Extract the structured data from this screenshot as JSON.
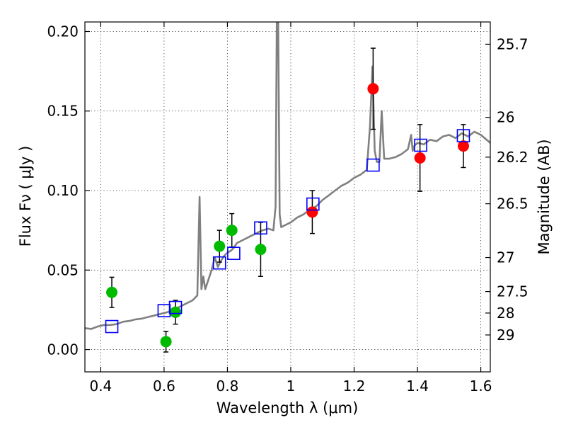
{
  "chart_data": {
    "type": "scatter",
    "xlabel": "Wavelength  λ (μm)",
    "ylabel": "Flux  Fν  ( μJy )",
    "ylabel_right": "Magnitude (AB)",
    "xlim": [
      0.35,
      1.63
    ],
    "ylim": [
      -0.014,
      0.206
    ],
    "xticks": [
      0.4,
      0.6,
      0.8,
      1.0,
      1.2,
      1.4,
      1.6
    ],
    "xtick_labels": [
      "0.4",
      "0.6",
      "0.8",
      "1",
      "1.2",
      "1.4",
      "1.6"
    ],
    "yticks": [
      0.0,
      0.05,
      0.1,
      0.15,
      0.2
    ],
    "ytick_labels": [
      "0.00",
      "0.05",
      "0.10",
      "0.15",
      "0.20"
    ],
    "right_ticks": [
      {
        "label": "25.7",
        "flux": 0.192
      },
      {
        "label": "26",
        "flux": 0.146
      },
      {
        "label": "26.2",
        "flux": 0.121
      },
      {
        "label": "26.5",
        "flux": 0.0917
      },
      {
        "label": "27",
        "flux": 0.0579
      },
      {
        "label": "27.5",
        "flux": 0.0365
      },
      {
        "label": "28",
        "flux": 0.023
      },
      {
        "label": "29",
        "flux": 0.0092
      }
    ],
    "grid": true,
    "colors": {
      "green": "#00bb00",
      "red": "#ff0000",
      "blue_box": "#0000ff",
      "spectrum": "#808080",
      "errorbar": "#000000"
    },
    "series": [
      {
        "type": "scatter",
        "marker": "circle",
        "color": "#00bb00",
        "points": [
          {
            "x": 0.435,
            "y": 0.036,
            "err": 0.0095
          },
          {
            "x": 0.606,
            "y": 0.005,
            "err": 0.0065
          },
          {
            "x": 0.636,
            "y": 0.0235,
            "err": 0.0075
          },
          {
            "x": 0.775,
            "y": 0.065,
            "err": 0.01
          },
          {
            "x": 0.814,
            "y": 0.075,
            "err": 0.0105
          },
          {
            "x": 0.905,
            "y": 0.063,
            "err": 0.017
          }
        ]
      },
      {
        "type": "scatter",
        "marker": "circle",
        "color": "#ff0000",
        "points": [
          {
            "x": 1.068,
            "y": 0.0865,
            "err": 0.0135
          },
          {
            "x": 1.26,
            "y": 0.164,
            "err": 0.0255
          },
          {
            "x": 1.408,
            "y": 0.1205,
            "err": 0.021
          },
          {
            "x": 1.545,
            "y": 0.128,
            "err": 0.0135
          }
        ]
      },
      {
        "type": "scatter",
        "marker": "open-square",
        "color": "#0000ff",
        "points": [
          {
            "x": 0.435,
            "y": 0.0145
          },
          {
            "x": 0.6,
            "y": 0.0245
          },
          {
            "x": 0.636,
            "y": 0.0265
          },
          {
            "x": 0.775,
            "y": 0.0545
          },
          {
            "x": 0.82,
            "y": 0.0605
          },
          {
            "x": 0.905,
            "y": 0.0765
          },
          {
            "x": 1.07,
            "y": 0.0915
          },
          {
            "x": 1.26,
            "y": 0.116
          },
          {
            "x": 1.41,
            "y": 0.1285
          },
          {
            "x": 1.545,
            "y": 0.1345
          }
        ]
      },
      {
        "type": "line",
        "color": "#808080",
        "x": [
          0.35,
          0.37,
          0.39,
          0.41,
          0.43,
          0.45,
          0.47,
          0.49,
          0.51,
          0.53,
          0.55,
          0.57,
          0.59,
          0.61,
          0.63,
          0.65,
          0.67,
          0.69,
          0.705,
          0.712,
          0.718,
          0.724,
          0.73,
          0.74,
          0.75,
          0.76,
          0.77,
          0.78,
          0.79,
          0.8,
          0.81,
          0.82,
          0.83,
          0.85,
          0.87,
          0.89,
          0.91,
          0.93,
          0.945,
          0.952,
          0.956,
          0.96,
          0.965,
          0.97,
          0.98,
          1.0,
          1.02,
          1.04,
          1.06,
          1.08,
          1.1,
          1.12,
          1.14,
          1.16,
          1.18,
          1.2,
          1.22,
          1.24,
          1.25,
          1.258,
          1.265,
          1.272,
          1.28,
          1.287,
          1.295,
          1.31,
          1.33,
          1.35,
          1.37,
          1.38,
          1.385,
          1.39,
          1.4,
          1.42,
          1.44,
          1.46,
          1.48,
          1.5,
          1.52,
          1.54,
          1.56,
          1.58,
          1.6,
          1.63
        ],
        "y": [
          0.0135,
          0.013,
          0.0145,
          0.0155,
          0.0155,
          0.016,
          0.0175,
          0.018,
          0.019,
          0.0195,
          0.0205,
          0.0215,
          0.0225,
          0.0235,
          0.025,
          0.027,
          0.029,
          0.031,
          0.034,
          0.096,
          0.038,
          0.046,
          0.038,
          0.044,
          0.05,
          0.058,
          0.052,
          0.056,
          0.059,
          0.061,
          0.062,
          0.064,
          0.067,
          0.069,
          0.071,
          0.073,
          0.075,
          0.076,
          0.075,
          0.09,
          0.21,
          0.21,
          0.085,
          0.077,
          0.078,
          0.08,
          0.083,
          0.085,
          0.088,
          0.09,
          0.094,
          0.097,
          0.1,
          0.103,
          0.105,
          0.108,
          0.11,
          0.113,
          0.14,
          0.178,
          0.125,
          0.118,
          0.118,
          0.15,
          0.12,
          0.12,
          0.121,
          0.123,
          0.126,
          0.135,
          0.125,
          0.128,
          0.13,
          0.129,
          0.132,
          0.131,
          0.134,
          0.135,
          0.133,
          0.136,
          0.134,
          0.137,
          0.135,
          0.13
        ]
      }
    ]
  }
}
